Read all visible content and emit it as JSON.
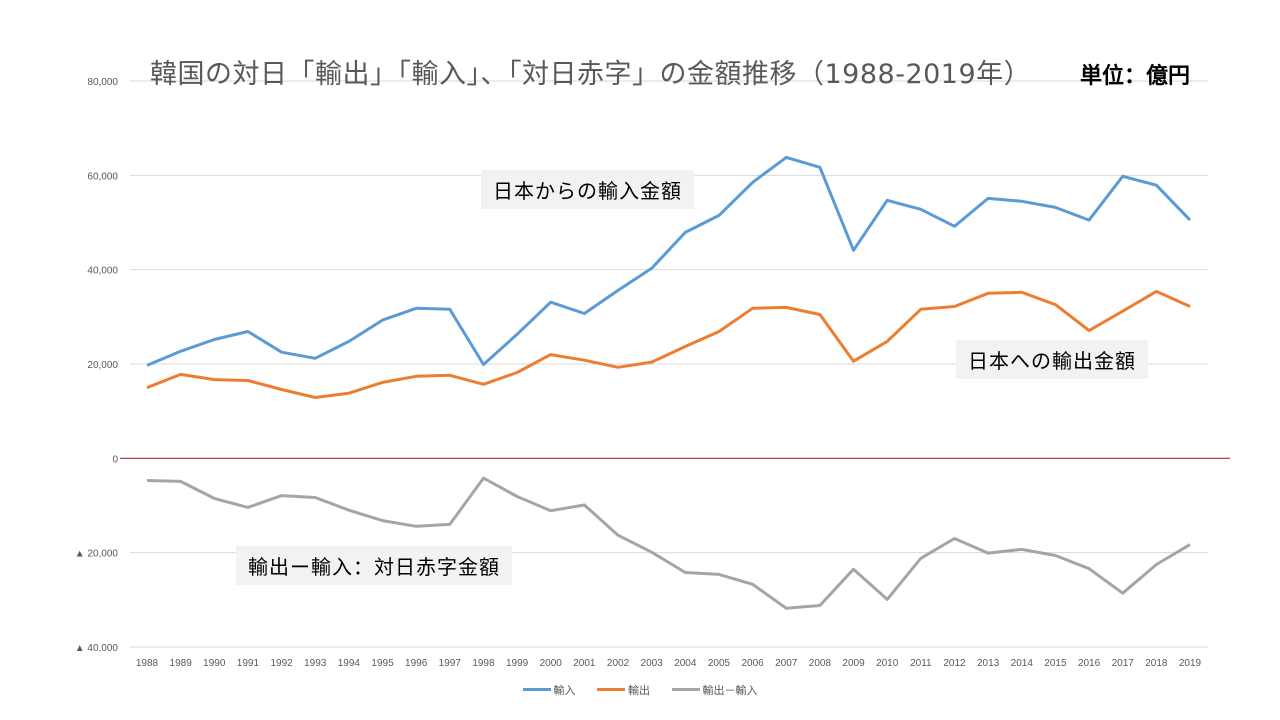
{
  "chart_data": {
    "type": "line",
    "title": "韓国の対日「輸出」「輸入」、「対日赤字」の金額推移（1988-2019年）",
    "unit_label": "単位：億円",
    "xlabel": "",
    "ylabel": "",
    "ylim": [
      -40000,
      80000
    ],
    "yticks": [
      80000,
      60000,
      40000,
      20000,
      0,
      -20000,
      -40000
    ],
    "ytick_labels": [
      "80,000",
      "60,000",
      "40,000",
      "20,000",
      "0",
      "▲ 20,000",
      "▲ 40,000"
    ],
    "grid": true,
    "legend_position": "bottom",
    "categories": [
      "1988",
      "1989",
      "1990",
      "1991",
      "1992",
      "1993",
      "1994",
      "1995",
      "1996",
      "1997",
      "1998",
      "1999",
      "2000",
      "2001",
      "2002",
      "2003",
      "2004",
      "2005",
      "2006",
      "2007",
      "2008",
      "2009",
      "2010",
      "2011",
      "2012",
      "2013",
      "2014",
      "2015",
      "2016",
      "2017",
      "2018",
      "2019"
    ],
    "series": [
      {
        "name": "輸入",
        "color": "#5b9bd5",
        "values": [
          19700,
          22700,
          25200,
          26900,
          22500,
          21200,
          24800,
          29300,
          31800,
          31600,
          19900,
          26300,
          33100,
          30700,
          35600,
          40300,
          47900,
          51500,
          58500,
          63800,
          61700,
          44100,
          54700,
          52800,
          49200,
          55100,
          54500,
          53200,
          50500,
          59800,
          57900,
          50500
        ]
      },
      {
        "name": "輸出",
        "color": "#ed7d31",
        "values": [
          15000,
          17800,
          16700,
          16500,
          14600,
          12900,
          13800,
          16100,
          17400,
          17600,
          15700,
          18200,
          22000,
          20800,
          19300,
          20400,
          23700,
          26900,
          31800,
          32000,
          30500,
          20600,
          24800,
          31600,
          32200,
          35000,
          35200,
          32600,
          27100,
          31200,
          35400,
          32200
        ]
      },
      {
        "name": "輸出－輸入",
        "color": "#a5a5a5",
        "values": [
          -4700,
          -4900,
          -8500,
          -10400,
          -7900,
          -8300,
          -11000,
          -13200,
          -14400,
          -14000,
          -4200,
          -8100,
          -11100,
          -9900,
          -16300,
          -19900,
          -24200,
          -24600,
          -26700,
          -31800,
          -31200,
          -23500,
          -29900,
          -21200,
          -17000,
          -20100,
          -19300,
          -20600,
          -23400,
          -28600,
          -22500,
          -18300
        ]
      }
    ],
    "zero_line_color": "#a52a2a",
    "annotations": [
      {
        "text": "日本からの輸入金額",
        "series": "輸入"
      },
      {
        "text": "日本への輸出金額",
        "series": "輸出"
      },
      {
        "text": "輸出ー輸入：対日赤字金額",
        "series": "輸出－輸入"
      }
    ]
  }
}
